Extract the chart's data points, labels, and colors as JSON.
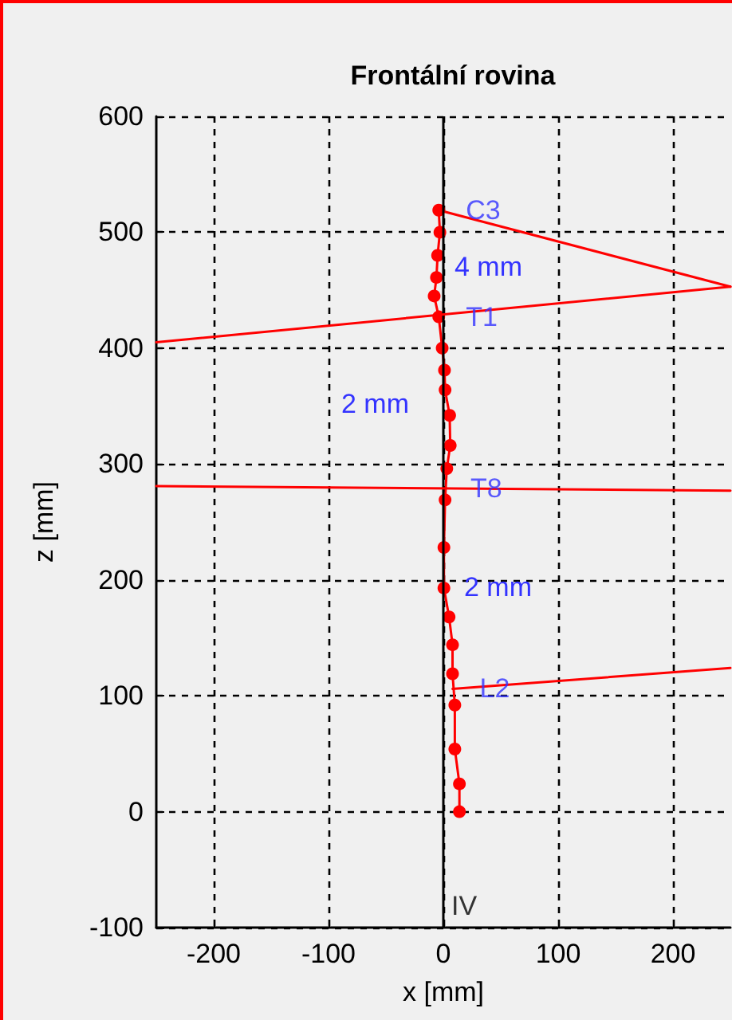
{
  "chart_data": {
    "type": "line",
    "title": "Frontální rovina",
    "xlabel": "x [mm]",
    "ylabel": "z [mm]",
    "xlim": [
      -250,
      250
    ],
    "xticks": [
      -200,
      -100,
      0,
      100,
      200
    ],
    "ylim": [
      -100,
      600
    ],
    "yticks": [
      -100,
      0,
      100,
      200,
      300,
      400,
      500,
      600
    ],
    "grid": true,
    "line_style": "solid",
    "series": [
      {
        "color": "#ff0000",
        "marker": "circle",
        "x": [
          -4,
          -3,
          -5,
          -6,
          -8,
          -4,
          -1,
          1,
          1.5,
          5.5,
          6,
          3,
          1.5,
          0.5,
          0.5,
          5,
          8,
          8,
          10,
          10,
          14,
          14
        ],
        "values": [
          519,
          500,
          480,
          461,
          445,
          427,
          400,
          381,
          364,
          342,
          316,
          296,
          269,
          228,
          193,
          168,
          144,
          119,
          92,
          54,
          24,
          0
        ]
      },
      {
        "color": "#ff0000",
        "marker": "none",
        "x": [
          -4,
          250
        ],
        "values": [
          519,
          453
        ]
      },
      {
        "color": "#ff0000",
        "marker": "none",
        "x": [
          -250,
          250
        ],
        "values": [
          405,
          453
        ]
      },
      {
        "color": "#ff0000",
        "marker": "none",
        "x": [
          -250,
          250
        ],
        "values": [
          281,
          277
        ]
      },
      {
        "color": "#ff0000",
        "marker": "none",
        "x": [
          8,
          250
        ],
        "values": [
          106,
          124
        ]
      }
    ],
    "ref_lines": [
      {
        "axis": "x",
        "value": 0,
        "label": null,
        "color": "#000000"
      }
    ],
    "annotations": [
      {
        "text": "C3",
        "x": -4,
        "y": 519
      },
      "4 mm",
      {
        "text": "T1",
        "x": -4,
        "y": 427
      },
      "2 mm",
      {
        "text": "T8",
        "x": 0,
        "y": 279
      },
      "2 mm",
      {
        "text": "L2",
        "x": 8,
        "y": 106
      },
      "IV"
    ]
  }
}
